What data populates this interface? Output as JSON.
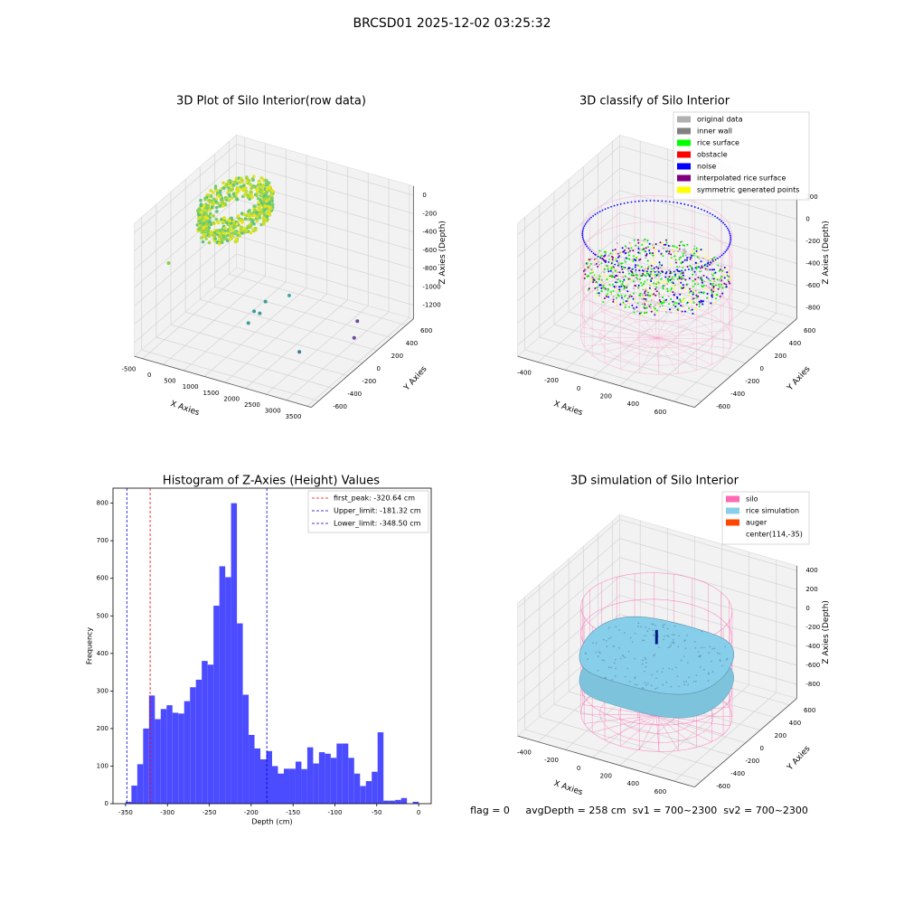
{
  "title": "BRCSD01 2025-12-02 03:25:32",
  "footer": "flag = 0     avgDepth = 258 cm  sv1 = 700~2300  sv2 = 700~2300",
  "chart_data": [
    {
      "type": "scatter3d",
      "title": "3D Plot of Silo Interior(row data)",
      "xlabel": "X Axies",
      "ylabel": "Y Axies",
      "zlabel": "Z Axies (Depth)",
      "xlim": [
        -700,
        3600
      ],
      "ylim": [
        -700,
        700
      ],
      "zlim": [
        -1350,
        100
      ],
      "xticks": [
        -500,
        0,
        500,
        1000,
        1500,
        2000,
        2500,
        3000,
        3500
      ],
      "yticks": [
        -600,
        -400,
        -200,
        0,
        200,
        400,
        600
      ],
      "zticks": [
        -1200,
        -1000,
        -800,
        -600,
        -400,
        -200,
        0
      ]
    },
    {
      "type": "classify3d",
      "title": "3D classify of Silo Interior",
      "xlabel": "X Axies",
      "ylabel": "Y Axies",
      "zlabel": "Z Axies (Depth)",
      "xlim": [
        -550,
        750
      ],
      "ylim": [
        -700,
        700
      ],
      "zlim": [
        -900,
        300
      ],
      "xticks": [
        -400,
        -200,
        0,
        200,
        400,
        600
      ],
      "yticks": [
        -600,
        -400,
        -200,
        0,
        200,
        400,
        600
      ],
      "zticks": [
        -800,
        -600,
        -400,
        -200,
        0,
        200
      ],
      "legend": [
        {
          "name": "original data",
          "color": "#b0b0b0"
        },
        {
          "name": "inner wall",
          "color": "#808080"
        },
        {
          "name": "rice surface",
          "color": "#00ff00"
        },
        {
          "name": "obstacle",
          "color": "#ff0000"
        },
        {
          "name": "noise",
          "color": "#0000ff"
        },
        {
          "name": "interpolated rice surface",
          "color": "#800080"
        },
        {
          "name": "symmetric generated points",
          "color": "#ffff00"
        }
      ]
    },
    {
      "type": "histogram",
      "title": "Histogram of Z-Axies (Height) Values",
      "xlabel": "Depth (cm)",
      "ylabel": "Frequency",
      "color": "#4b4bff",
      "bins": [
        -350,
        -343,
        -336,
        -329,
        -322,
        -315,
        -308,
        -301,
        -294,
        -287,
        -280,
        -273,
        -266,
        -259,
        -252,
        -245,
        -238,
        -231,
        -224,
        -217,
        -210,
        -203,
        -196,
        -189,
        -182,
        -175,
        -168,
        -161,
        -154,
        -147,
        -140,
        -133,
        -126,
        -119,
        -112,
        -105,
        -98,
        -91,
        -84,
        -77,
        -70,
        -63,
        -56,
        -49,
        -42,
        -35,
        -28,
        -21,
        -14,
        -7,
        0
      ],
      "values": [
        5,
        48,
        105,
        200,
        288,
        225,
        252,
        262,
        242,
        240,
        273,
        310,
        330,
        380,
        370,
        527,
        632,
        603,
        800,
        480,
        290,
        183,
        147,
        118,
        140,
        100,
        80,
        93,
        93,
        112,
        92,
        150,
        107,
        137,
        133,
        122,
        160,
        160,
        122,
        80,
        47,
        60,
        85,
        190,
        8,
        8,
        10,
        15,
        0,
        5
      ],
      "xlim": [
        -365,
        15
      ],
      "ylim": [
        0,
        840
      ],
      "xticks": [
        -350,
        -300,
        -250,
        -200,
        -150,
        -100,
        -50,
        0
      ],
      "yticks": [
        0,
        100,
        200,
        300,
        400,
        500,
        600,
        700,
        800
      ],
      "vlines": [
        {
          "name": "first_peak: -320.64 cm",
          "value": -320.64,
          "color": "#ff0000"
        },
        {
          "name": "Upper_limit: -181.32 cm",
          "value": -181.32,
          "color": "#0000cc"
        },
        {
          "name": "Lower_limit: -348.50 cm",
          "value": -348.5,
          "color": "#0000cc"
        }
      ]
    },
    {
      "type": "surface3d",
      "title": "3D simulation of Silo Interior",
      "xlabel": "X Axies",
      "ylabel": "Y Axies",
      "zlabel": "Z Axies (Depth)",
      "xlim": [
        -550,
        750
      ],
      "ylim": [
        -700,
        700
      ],
      "zlim": [
        -950,
        450
      ],
      "xticks": [
        -400,
        -200,
        0,
        200,
        400,
        600
      ],
      "yticks": [
        -600,
        -400,
        -200,
        0,
        200,
        400,
        600
      ],
      "zticks": [
        -800,
        -600,
        -400,
        -200,
        0,
        200,
        400
      ],
      "legend": [
        {
          "name": "silo",
          "color": "#ff69b4"
        },
        {
          "name": "rice simulation",
          "color": "#87ceeb"
        },
        {
          "name": "auger",
          "color": "#ff4500"
        },
        {
          "name": "center(114,-35)"
        }
      ]
    }
  ]
}
